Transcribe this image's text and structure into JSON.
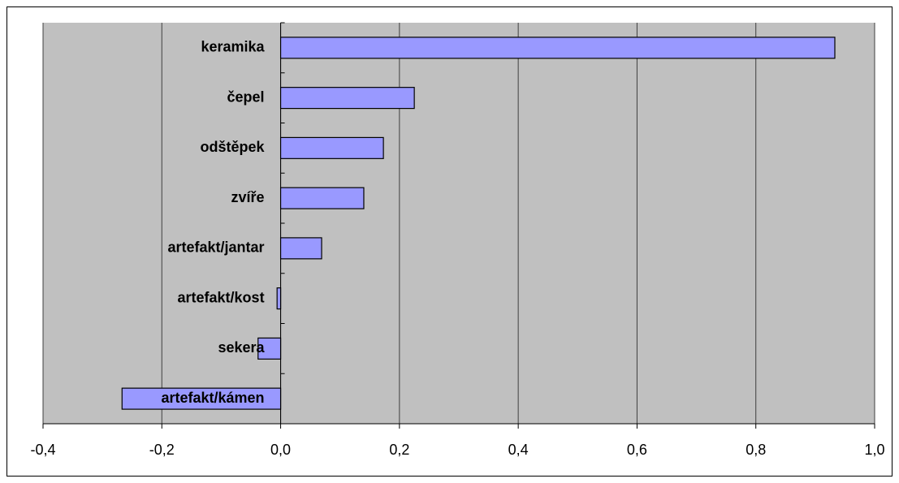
{
  "chart_data": {
    "type": "bar",
    "orientation": "horizontal",
    "categories": [
      "keramika",
      "čepel",
      "odštěpek",
      "zvíře",
      "artefakt/jantar",
      "artefakt/kost",
      "sekera",
      "artefakt/kámen"
    ],
    "values": [
      0.933,
      0.225,
      0.173,
      0.14,
      0.069,
      -0.006,
      -0.038,
      -0.267
    ],
    "color": "#9999ff",
    "xlim": [
      -0.4,
      1.0
    ],
    "xticks": [
      {
        "value": -0.4,
        "label": "-0,4"
      },
      {
        "value": -0.2,
        "label": "-0,2"
      },
      {
        "value": 0,
        "label": "0,0"
      },
      {
        "value": 0.2,
        "label": "0,2"
      },
      {
        "value": 0.4,
        "label": "0,4"
      },
      {
        "value": 0.6,
        "label": "0,6"
      },
      {
        "value": 0.8,
        "label": "0,8"
      },
      {
        "value": 1.0,
        "label": "1,0"
      }
    ],
    "grid": true
  }
}
